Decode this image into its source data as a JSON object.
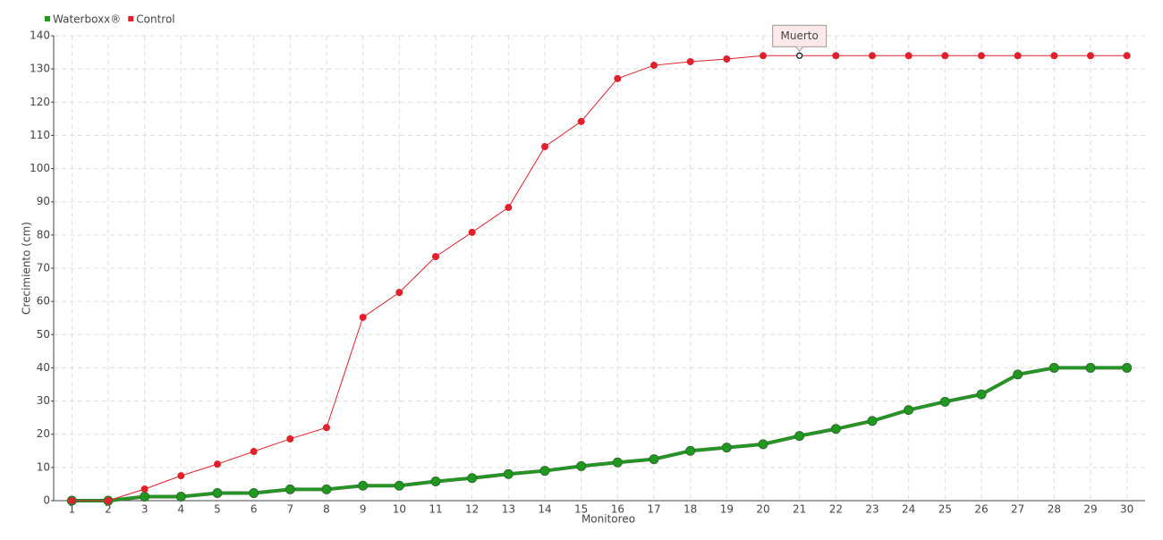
{
  "chart_data": {
    "type": "line",
    "x_label": "Monitoreo",
    "y_label": "Crecimiento (cm)",
    "categories": [
      "1",
      "2",
      "3",
      "4",
      "5",
      "6",
      "7",
      "8",
      "9",
      "10",
      "11",
      "12",
      "13",
      "14",
      "15",
      "16",
      "17",
      "18",
      "19",
      "20",
      "21",
      "22",
      "23",
      "24",
      "25",
      "26",
      "27",
      "28",
      "29",
      "30"
    ],
    "series": [
      {
        "name": "Waterboxx®",
        "color": "#1f9a1f",
        "values": [
          0,
          0,
          1.2,
          1.2,
          2.3,
          2.3,
          3.4,
          3.4,
          4.5,
          4.5,
          5.8,
          6.8,
          8,
          9,
          10.4,
          11.5,
          12.5,
          15,
          16,
          17,
          19.5,
          21.6,
          24,
          27.3,
          29.8,
          32,
          38,
          40,
          40,
          40
        ]
      },
      {
        "name": "Control",
        "color": "#e0202a",
        "values": [
          0,
          0,
          3.5,
          7.5,
          11,
          14.8,
          18.6,
          22,
          55.2,
          62.7,
          73.5,
          80.8,
          88.3,
          106.6,
          114.2,
          127.1,
          131.1,
          132.2,
          133,
          134,
          134,
          134,
          134,
          134,
          134,
          134,
          134,
          134,
          134,
          134
        ]
      }
    ],
    "annotation": {
      "text": "Muerto",
      "series": "Control",
      "x": "21"
    },
    "ylim": [
      0,
      140
    ],
    "yticks": [
      0,
      10,
      20,
      30,
      40,
      50,
      60,
      70,
      80,
      90,
      100,
      110,
      120,
      130,
      140
    ],
    "grid": true,
    "legend": "top-left"
  }
}
